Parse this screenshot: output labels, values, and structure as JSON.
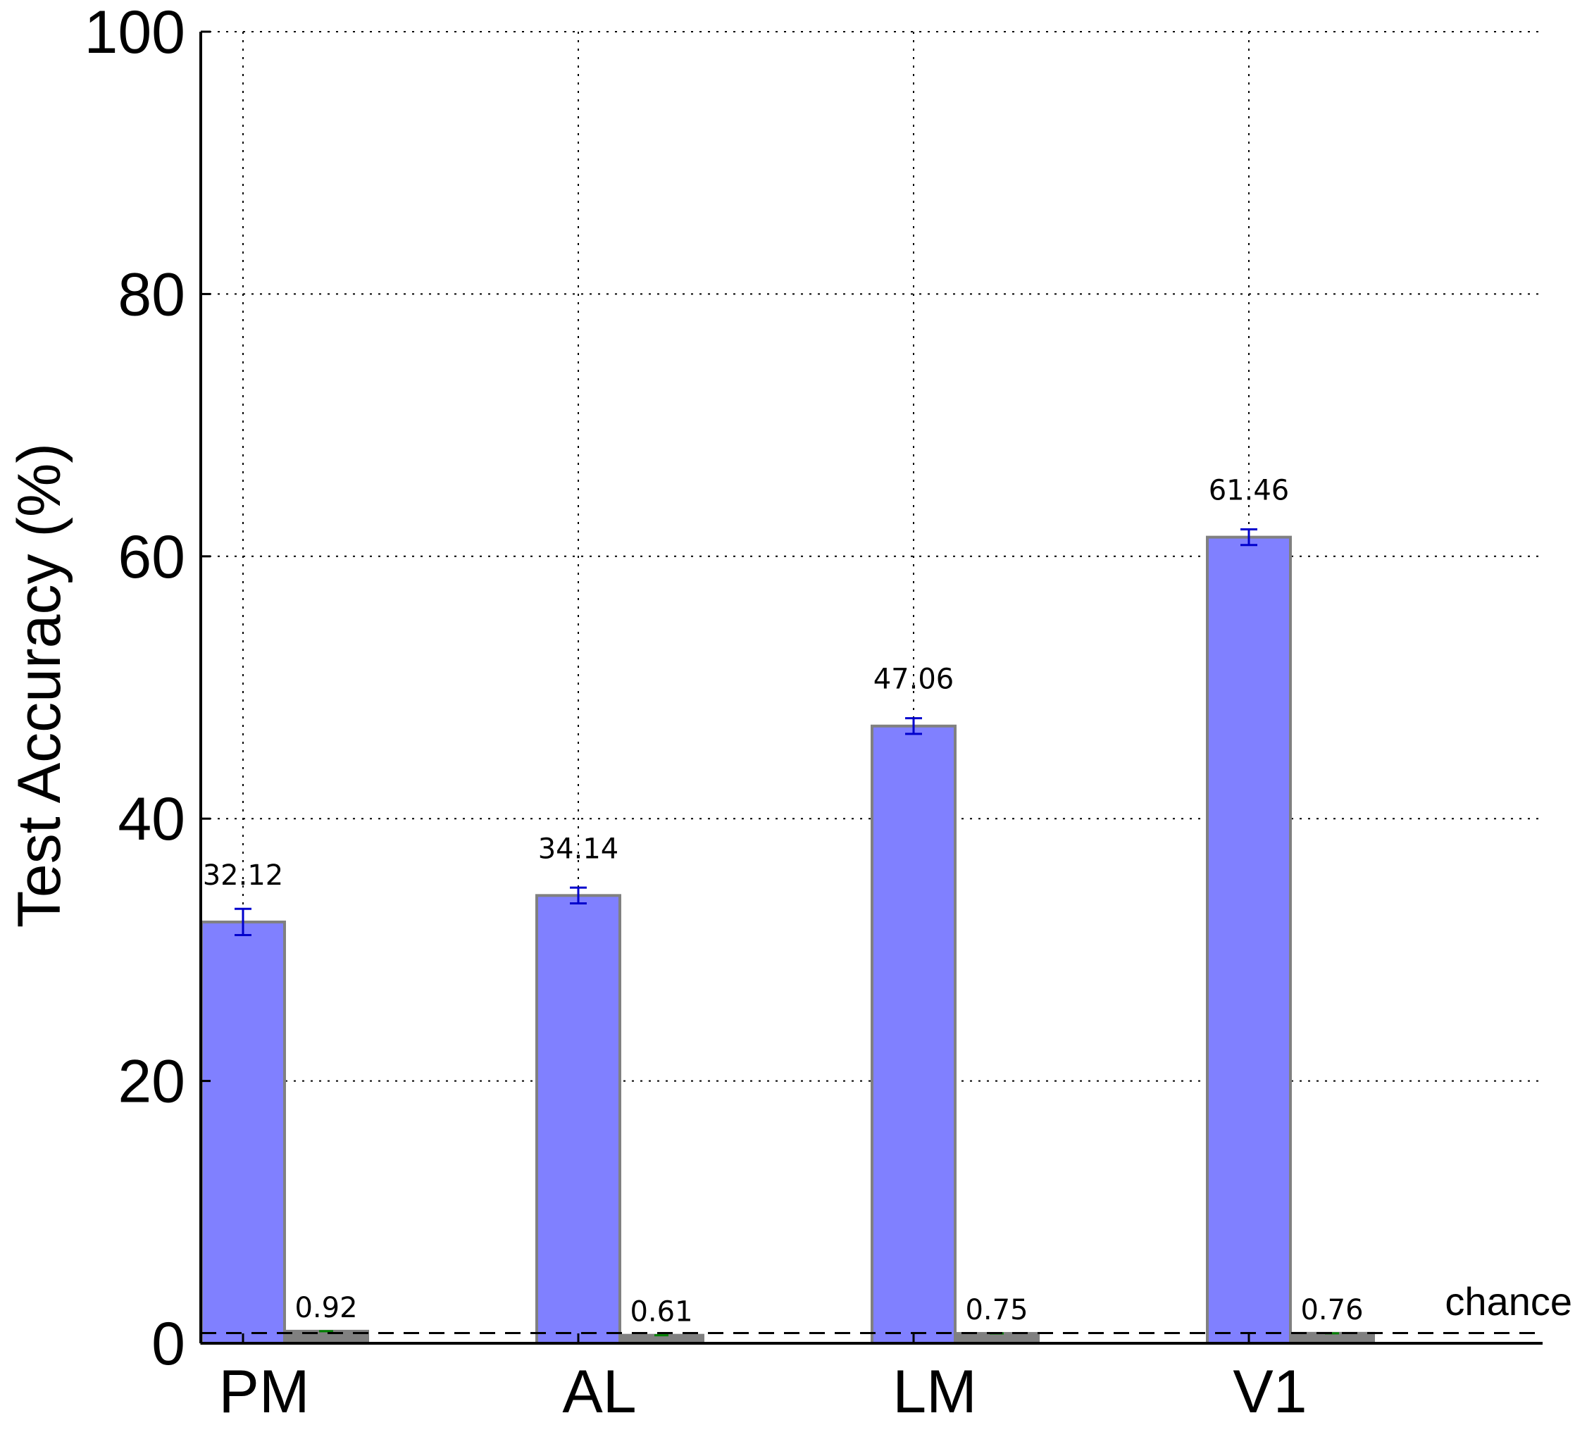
{
  "chart_data": {
    "type": "bar",
    "categories": [
      "PM",
      "AL",
      "LM",
      "V1"
    ],
    "series": [
      {
        "values": [
          32.12,
          34.14,
          47.06,
          61.46
        ],
        "errors": [
          1.0,
          0.6,
          0.6,
          0.6
        ],
        "labels": [
          "32.12",
          "34.14",
          "47.06",
          "61.46"
        ],
        "color": "#8080ff",
        "error_color": "#0000cc"
      },
      {
        "values": [
          0.92,
          0.61,
          0.75,
          0.76
        ],
        "labels": [
          "0.92",
          "0.61",
          "0.75",
          "0.76"
        ],
        "color": "#808080",
        "error_color": "#008000"
      }
    ],
    "chance": {
      "value": 0.78,
      "label": "chance"
    },
    "title": "",
    "xlabel": "",
    "ylabel": "Test Accuracy (%)",
    "ylim": [
      0,
      100
    ],
    "yticks": [
      "0",
      "20",
      "40",
      "60",
      "80",
      "100"
    ],
    "grid": true,
    "bar_edge_color": "#808080"
  }
}
